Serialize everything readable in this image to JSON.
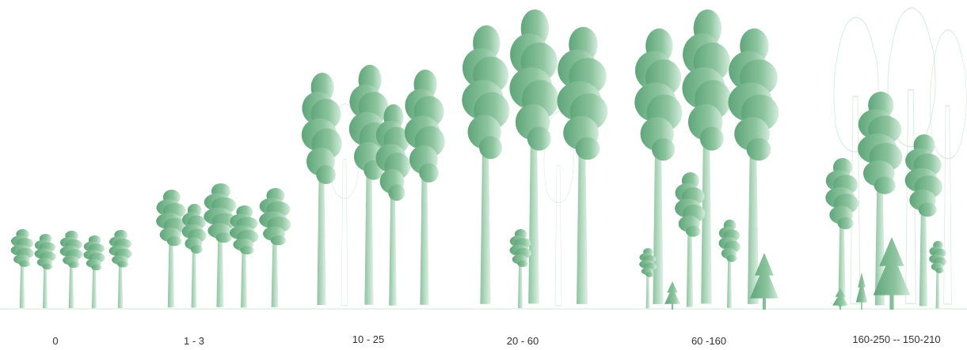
{
  "stages": [
    {
      "label": "0"
    },
    {
      "label": "1 - 3"
    },
    {
      "label": "10 - 25"
    },
    {
      "label": "20 - 60"
    },
    {
      "label": "60 -160"
    },
    {
      "label": "160-250 -- 150-210"
    }
  ]
}
